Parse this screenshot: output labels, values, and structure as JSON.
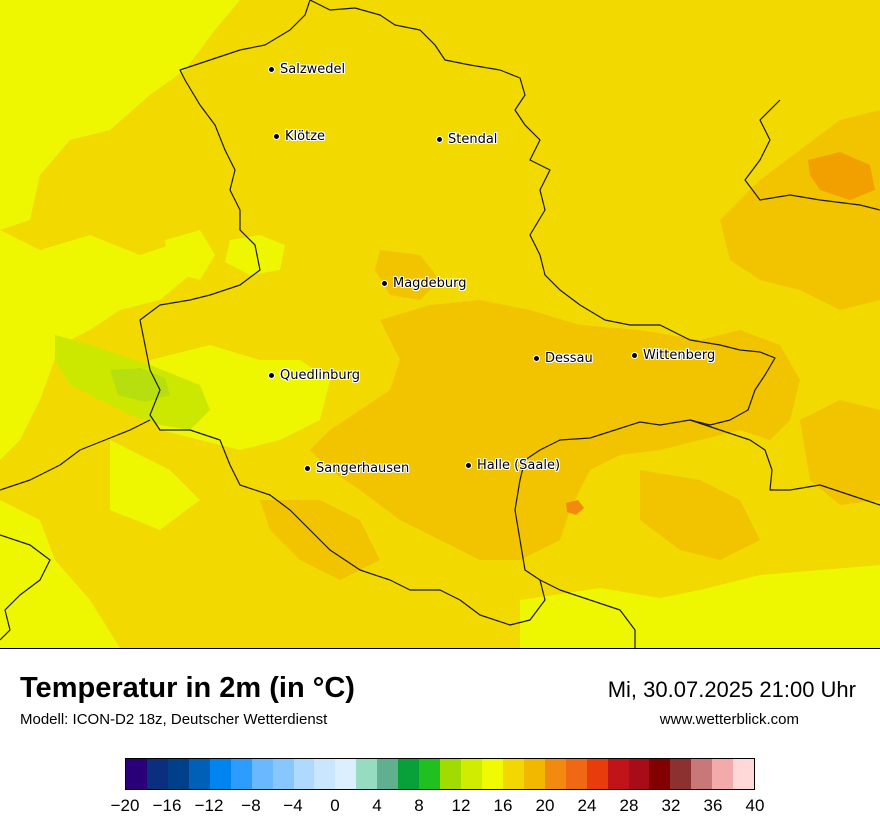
{
  "title": "Temperatur in 2m (in °C)",
  "subtitle": "Modell: ICON-D2 18z, Deutscher Wetterdienst",
  "datetime": "Mi, 30.07.2025 21:00 Uhr",
  "website": "www.wetterblick.com",
  "cities": [
    {
      "id": "salzwedel",
      "label": "Salzwedel"
    },
    {
      "id": "kloetze",
      "label": "Klötze"
    },
    {
      "id": "stendal",
      "label": "Stendal"
    },
    {
      "id": "magdeburg",
      "label": "Magdeburg"
    },
    {
      "id": "dessau",
      "label": "Dessau"
    },
    {
      "id": "wittenberg",
      "label": "Wittenberg"
    },
    {
      "id": "quedlinburg",
      "label": "Quedlinburg"
    },
    {
      "id": "sangerhausen",
      "label": "Sangerhausen"
    },
    {
      "id": "halle",
      "label": "Halle (Saale)"
    }
  ],
  "colorbar": {
    "colors": [
      "#2a0078",
      "#0b2f7e",
      "#003f8a",
      "#0060b8",
      "#0084f0",
      "#2c9dff",
      "#6ab8ff",
      "#88c6ff",
      "#b0d9ff",
      "#cae6ff",
      "#dcefff",
      "#96dcc0",
      "#60b090",
      "#08a038",
      "#20c020",
      "#a0dc00",
      "#d0ec00",
      "#f0fa00",
      "#f2d800",
      "#f2b800",
      "#f28a10",
      "#f06814",
      "#e83c0c",
      "#c01418",
      "#a80c18",
      "#820000",
      "#8c3030",
      "#c87878",
      "#f2aaaa",
      "#ffd8d8"
    ],
    "tick_labels": [
      "−20",
      "−16",
      "−12",
      "−8",
      "−4",
      "0",
      "4",
      "8",
      "12",
      "16",
      "20",
      "24",
      "28",
      "32",
      "36",
      "40"
    ],
    "min": -20,
    "max": 40
  }
}
